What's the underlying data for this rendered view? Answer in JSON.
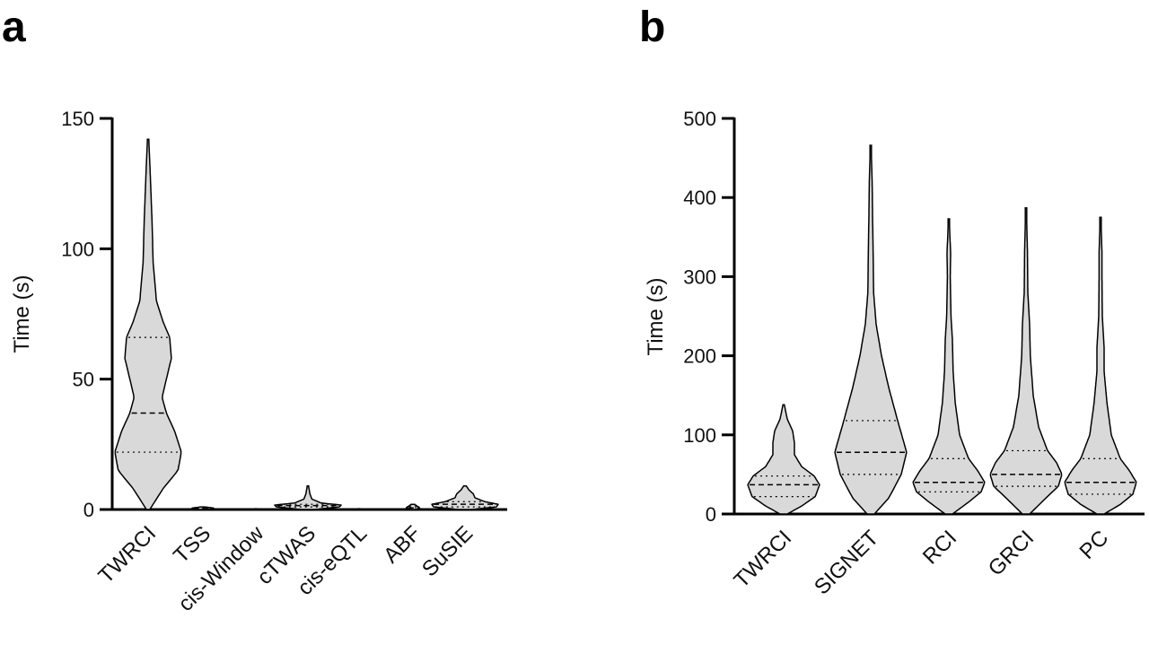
{
  "chart_data": [
    {
      "panel": "a",
      "type": "violin",
      "ylabel": "Time (s)",
      "ylim": [
        0,
        150
      ],
      "yticks": [
        0,
        50,
        100,
        150
      ],
      "categories": [
        "TWRCI",
        "TSS",
        "cis-Window",
        "cTWAS",
        "cis-eQTL",
        "ABF",
        "SuSIE"
      ],
      "series": [
        {
          "category": "TWRCI",
          "min": 0,
          "max": 142,
          "q1": 22,
          "median": 37,
          "q3": 66,
          "density": [
            [
              0,
              0.05
            ],
            [
              8,
              0.45
            ],
            [
              15,
              0.9
            ],
            [
              22,
              1.0
            ],
            [
              30,
              0.8
            ],
            [
              37,
              0.55
            ],
            [
              43,
              0.42
            ],
            [
              50,
              0.55
            ],
            [
              58,
              0.7
            ],
            [
              66,
              0.65
            ],
            [
              72,
              0.45
            ],
            [
              80,
              0.25
            ],
            [
              95,
              0.15
            ],
            [
              110,
              0.12
            ],
            [
              120,
              0.09
            ],
            [
              130,
              0.06
            ],
            [
              142,
              0.02
            ]
          ]
        },
        {
          "category": "TSS",
          "min": 0,
          "max": 1,
          "q1": 0.2,
          "median": 0.4,
          "q3": 0.7,
          "density": [
            [
              0,
              0.1
            ],
            [
              0.3,
              0.35
            ],
            [
              0.6,
              0.3
            ],
            [
              1,
              0.05
            ]
          ]
        },
        {
          "category": "cis-Window",
          "min": 0,
          "max": 0.3,
          "q1": 0.05,
          "median": 0.1,
          "q3": 0.2,
          "density": [
            [
              0,
              0.03
            ],
            [
              0.15,
              0.04
            ],
            [
              0.3,
              0.02
            ]
          ]
        },
        {
          "category": "cTWAS",
          "min": 0,
          "max": 9,
          "q1": 1,
          "median": 1.5,
          "q3": 2,
          "density": [
            [
              0,
              0.2
            ],
            [
              1,
              0.95
            ],
            [
              1.7,
              1.0
            ],
            [
              2.5,
              0.4
            ],
            [
              4,
              0.12
            ],
            [
              6,
              0.06
            ],
            [
              9,
              0.02
            ]
          ]
        },
        {
          "category": "cis-eQTL",
          "min": 0,
          "max": 0.3,
          "q1": 0.05,
          "median": 0.1,
          "q3": 0.2,
          "density": [
            [
              0,
              0.03
            ],
            [
              0.15,
              0.04
            ],
            [
              0.3,
              0.02
            ]
          ]
        },
        {
          "category": "ABF",
          "min": 0,
          "max": 2,
          "q1": 0.3,
          "median": 0.6,
          "q3": 1,
          "density": [
            [
              0,
              0.08
            ],
            [
              0.5,
              0.2
            ],
            [
              1,
              0.16
            ],
            [
              2,
              0.04
            ]
          ]
        },
        {
          "category": "SuSIE",
          "min": 0,
          "max": 9,
          "q1": 1,
          "median": 2,
          "q3": 3,
          "density": [
            [
              0,
              0.2
            ],
            [
              1,
              0.95
            ],
            [
              2,
              1.0
            ],
            [
              3,
              0.6
            ],
            [
              4.5,
              0.3
            ],
            [
              6,
              0.25
            ],
            [
              7.5,
              0.12
            ],
            [
              9,
              0.04
            ]
          ]
        }
      ]
    },
    {
      "panel": "b",
      "type": "violin",
      "ylabel": "Time (s)",
      "ylim": [
        0,
        500
      ],
      "yticks": [
        0,
        100,
        200,
        300,
        400,
        500
      ],
      "categories": [
        "TWRCI",
        "SIGNET",
        "RCI",
        "GRCI",
        "PC"
      ],
      "series": [
        {
          "category": "TWRCI",
          "min": 0,
          "max": 138,
          "q1": 22,
          "median": 37,
          "q3": 48,
          "density": [
            [
              0,
              0.1
            ],
            [
              10,
              0.5
            ],
            [
              22,
              0.88
            ],
            [
              37,
              1.0
            ],
            [
              48,
              0.85
            ],
            [
              60,
              0.5
            ],
            [
              75,
              0.3
            ],
            [
              90,
              0.3
            ],
            [
              105,
              0.25
            ],
            [
              120,
              0.1
            ],
            [
              138,
              0.02
            ]
          ]
        },
        {
          "category": "SIGNET",
          "min": 0,
          "max": 466,
          "q1": 50,
          "median": 78,
          "q3": 118,
          "density": [
            [
              0,
              0.1
            ],
            [
              20,
              0.5
            ],
            [
              50,
              0.85
            ],
            [
              78,
              1.0
            ],
            [
              118,
              0.75
            ],
            [
              160,
              0.5
            ],
            [
              200,
              0.3
            ],
            [
              240,
              0.15
            ],
            [
              280,
              0.08
            ],
            [
              320,
              0.07
            ],
            [
              380,
              0.05
            ],
            [
              420,
              0.04
            ],
            [
              466,
              0.01
            ]
          ]
        },
        {
          "category": "RCI",
          "min": 0,
          "max": 373,
          "q1": 28,
          "median": 40,
          "q3": 70,
          "density": [
            [
              0,
              0.1
            ],
            [
              15,
              0.55
            ],
            [
              28,
              0.9
            ],
            [
              40,
              1.0
            ],
            [
              55,
              0.8
            ],
            [
              70,
              0.55
            ],
            [
              100,
              0.3
            ],
            [
              140,
              0.18
            ],
            [
              180,
              0.12
            ],
            [
              220,
              0.1
            ],
            [
              250,
              0.06
            ],
            [
              300,
              0.04
            ],
            [
              330,
              0.05
            ],
            [
              373,
              0.01
            ]
          ]
        },
        {
          "category": "GRCI",
          "min": 0,
          "max": 387,
          "q1": 35,
          "median": 50,
          "q3": 80,
          "density": [
            [
              0,
              0.1
            ],
            [
              20,
              0.55
            ],
            [
              35,
              0.9
            ],
            [
              50,
              1.0
            ],
            [
              65,
              0.85
            ],
            [
              80,
              0.6
            ],
            [
              110,
              0.35
            ],
            [
              150,
              0.2
            ],
            [
              200,
              0.12
            ],
            [
              240,
              0.1
            ],
            [
              280,
              0.05
            ],
            [
              330,
              0.04
            ],
            [
              387,
              0.01
            ]
          ]
        },
        {
          "category": "PC",
          "min": 0,
          "max": 375,
          "q1": 25,
          "median": 40,
          "q3": 70,
          "density": [
            [
              0,
              0.1
            ],
            [
              12,
              0.55
            ],
            [
              25,
              0.9
            ],
            [
              40,
              1.0
            ],
            [
              55,
              0.8
            ],
            [
              70,
              0.55
            ],
            [
              100,
              0.3
            ],
            [
              140,
              0.18
            ],
            [
              180,
              0.1
            ],
            [
              210,
              0.1
            ],
            [
              250,
              0.05
            ],
            [
              300,
              0.04
            ],
            [
              330,
              0.04
            ],
            [
              375,
              0.01
            ]
          ]
        }
      ]
    }
  ],
  "panel_labels": [
    "a",
    "b"
  ],
  "colors": {
    "violin_fill": "#d9d9d9",
    "stroke": "#000000"
  }
}
